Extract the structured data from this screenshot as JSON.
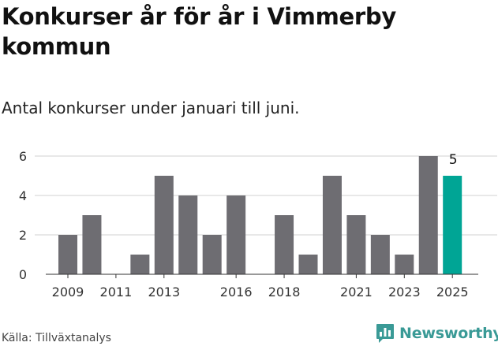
{
  "title": "Konkurser år för år i Vimmerby kommun",
  "subtitle": "Antal konkurser under januari till juni.",
  "source": "Källa: Tillväxtanalys",
  "brand": "Newsworthy",
  "colors": {
    "bar": "#6e6d72",
    "highlight": "#00a595",
    "grid": "#d9d9d9",
    "brand": "#3a9a96"
  },
  "chart_data": {
    "type": "bar",
    "categories": [
      "2009",
      "2010",
      "2011",
      "2012",
      "2013",
      "2014",
      "2015",
      "2016",
      "2017",
      "2018",
      "2019",
      "2020",
      "2021",
      "2022",
      "2023",
      "2024",
      "2025"
    ],
    "values": [
      2,
      3,
      0,
      1,
      5,
      4,
      2,
      4,
      0,
      3,
      1,
      5,
      3,
      2,
      1,
      6,
      5
    ],
    "x_tick_labels": [
      "2009",
      "2011",
      "2013",
      "2016",
      "2018",
      "2021",
      "2023",
      "2025"
    ],
    "y_ticks": [
      0,
      2,
      4,
      6
    ],
    "ylim": [
      0,
      6.6
    ],
    "highlight_category": "2025",
    "data_labels": [
      {
        "category": "2025",
        "text": "5"
      }
    ],
    "grid": true
  }
}
